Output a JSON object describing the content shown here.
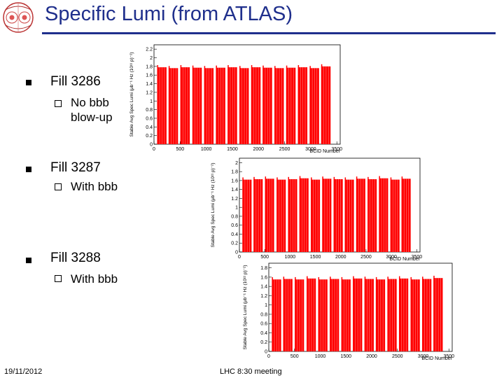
{
  "slide": {
    "title": "Specific Lumi (from ATLAS)",
    "bullets": [
      {
        "label": "Fill 3286",
        "sub": [
          "No bbb",
          "blow-up"
        ]
      },
      {
        "label": "Fill 3287",
        "sub": [
          "With bbb"
        ]
      },
      {
        "label": "Fill 3288",
        "sub": [
          "With bbb"
        ]
      }
    ],
    "footer_date": "19/11/2012",
    "footer_center": "LHC 8:30 meeting"
  },
  "colors": {
    "title": "#1f2f8c",
    "bars": "#ff0000"
  },
  "icons": {
    "logo": "lhc-crosssection-logo",
    "bullet": "filled-square",
    "sub_bullet": "hollow-square"
  },
  "chart_data": [
    {
      "type": "bar",
      "xlabel": "BCID Number",
      "ylabel": "Stable Avg Spec Lumi (μb⁻¹ Hz (10¹¹ p)⁻²)",
      "xticks": [
        0,
        500,
        1000,
        1500,
        2000,
        2500,
        3000,
        3500
      ],
      "yticks": [
        0,
        0.2,
        0.4,
        0.6,
        0.8,
        1,
        1.2,
        1.4,
        1.6,
        1.8,
        2,
        2.2
      ],
      "xlim": [
        0,
        3564
      ],
      "ylim": [
        0,
        2.3
      ],
      "train_starts": [
        60,
        280,
        505,
        735,
        960,
        1185,
        1410,
        1635,
        1860,
        2080,
        2305,
        2530,
        2755,
        2980,
        3200
      ],
      "train_length": 180,
      "levels": [
        1.78,
        1.76,
        1.78,
        1.77,
        1.76,
        1.77,
        1.78,
        1.76,
        1.78,
        1.77,
        1.76,
        1.77,
        1.78,
        1.76,
        1.8
      ]
    },
    {
      "type": "bar",
      "xlabel": "BCID Number",
      "ylabel": "Stable Avg Spec Lumi (μb⁻¹ Hz (10¹¹ p)⁻²)",
      "xticks": [
        0,
        500,
        1000,
        1500,
        2000,
        2500,
        3000,
        3500
      ],
      "yticks": [
        0,
        0.2,
        0.4,
        0.6,
        0.8,
        1,
        1.2,
        1.4,
        1.6,
        1.8,
        2
      ],
      "xlim": [
        0,
        3564
      ],
      "ylim": [
        0,
        2.1
      ],
      "train_starts": [
        60,
        280,
        505,
        735,
        960,
        1185,
        1410,
        1635,
        1860,
        2080,
        2305,
        2530,
        2755,
        2980,
        3200
      ],
      "train_length": 180,
      "levels": [
        1.62,
        1.63,
        1.64,
        1.62,
        1.63,
        1.65,
        1.62,
        1.64,
        1.63,
        1.62,
        1.64,
        1.63,
        1.65,
        1.62,
        1.64
      ]
    },
    {
      "type": "bar",
      "xlabel": "BCID Number",
      "ylabel": "Stable Avg Spec Lumi (μb⁻¹ Hz (10¹¹ p)⁻²)",
      "xticks": [
        0,
        500,
        1000,
        1500,
        2000,
        2500,
        3000,
        3500
      ],
      "yticks": [
        0,
        0.2,
        0.4,
        0.6,
        0.8,
        1,
        1.2,
        1.4,
        1.6,
        1.8
      ],
      "xlim": [
        0,
        3564
      ],
      "ylim": [
        0,
        1.9
      ],
      "train_starts": [
        60,
        280,
        505,
        735,
        960,
        1185,
        1410,
        1635,
        1860,
        2080,
        2305,
        2530,
        2755,
        2980,
        3200
      ],
      "train_length": 180,
      "levels": [
        1.55,
        1.56,
        1.55,
        1.57,
        1.55,
        1.56,
        1.55,
        1.57,
        1.56,
        1.55,
        1.56,
        1.57,
        1.55,
        1.56,
        1.58
      ]
    }
  ]
}
